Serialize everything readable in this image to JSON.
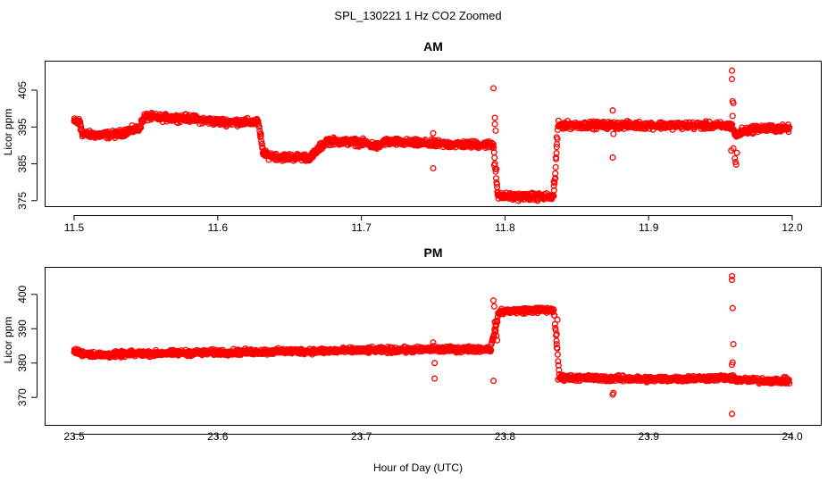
{
  "chart_data": {
    "type": "scatter",
    "title": "SPL_130221  1 Hz CO2 Zoomed",
    "xlabel": "Hour of Day (UTC)",
    "marker_color": "#ff0000",
    "panels": [
      {
        "title": "AM",
        "ylabel": "Licor ppm",
        "xlim": [
          11.5,
          12.0
        ],
        "ylim": [
          373.5,
          413
        ],
        "x_ticks": [
          "11.5",
          "11.6",
          "11.7",
          "11.8",
          "11.9",
          "12.0"
        ],
        "y_ticks": [
          "375",
          "385",
          "395",
          "405"
        ],
        "profile": [
          [
            11.5,
            396.5
          ],
          [
            11.504,
            396.5
          ],
          [
            11.506,
            393.0
          ],
          [
            11.52,
            392.8
          ],
          [
            11.53,
            393.0
          ],
          [
            11.538,
            394.0
          ],
          [
            11.545,
            394.5
          ],
          [
            11.549,
            397.8
          ],
          [
            11.56,
            397.5
          ],
          [
            11.58,
            397.4
          ],
          [
            11.59,
            396.8
          ],
          [
            11.6,
            396.4
          ],
          [
            11.628,
            396.3
          ],
          [
            11.632,
            387.5
          ],
          [
            11.645,
            386.8
          ],
          [
            11.665,
            386.8
          ],
          [
            11.67,
            389.0
          ],
          [
            11.676,
            391.2
          ],
          [
            11.7,
            390.8
          ],
          [
            11.712,
            389.7
          ],
          [
            11.716,
            391.0
          ],
          [
            11.735,
            390.7
          ],
          [
            11.76,
            390.3
          ],
          [
            11.792,
            390.2
          ],
          [
            11.795,
            376.2
          ],
          [
            11.834,
            376.0
          ],
          [
            11.837,
            395.5
          ],
          [
            11.85,
            395.5
          ],
          [
            11.94,
            395.4
          ],
          [
            11.958,
            395.3
          ],
          [
            11.961,
            392.5
          ],
          [
            11.965,
            393.8
          ],
          [
            11.975,
            394.6
          ],
          [
            11.998,
            394.6
          ]
        ],
        "noise_ppm": 0.7,
        "outliers": [
          [
            11.5005,
            396.8
          ],
          [
            11.5028,
            395.8
          ],
          [
            11.5045,
            394.2
          ],
          [
            11.63,
            393.2
          ],
          [
            11.631,
            389.3
          ],
          [
            11.632,
            388.5
          ],
          [
            11.75,
            393.3
          ],
          [
            11.75,
            383.8
          ],
          [
            11.7505,
            390.5
          ],
          [
            11.792,
            405.5
          ],
          [
            11.793,
            397.5
          ],
          [
            11.793,
            395.8
          ],
          [
            11.7935,
            394.0
          ],
          [
            11.7925,
            384.6
          ],
          [
            11.794,
            383.6
          ],
          [
            11.7945,
            378.7
          ],
          [
            11.795,
            377.2
          ],
          [
            11.834,
            380.2
          ],
          [
            11.834,
            379.0
          ],
          [
            11.835,
            381.1
          ],
          [
            11.8355,
            386.7
          ],
          [
            11.836,
            392.2
          ],
          [
            11.836,
            389.6
          ],
          [
            11.875,
            399.5
          ],
          [
            11.875,
            386.7
          ],
          [
            11.8755,
            393.1
          ],
          [
            11.958,
            410.3
          ],
          [
            11.958,
            408.0
          ],
          [
            11.9585,
            402.0
          ],
          [
            11.959,
            401.5
          ],
          [
            11.9585,
            398.0
          ],
          [
            11.9575,
            388.6
          ],
          [
            11.959,
            389.2
          ],
          [
            11.96,
            386.5
          ],
          [
            11.9605,
            385.5
          ],
          [
            11.961,
            384.8
          ],
          [
            11.9615,
            388.0
          ]
        ]
      },
      {
        "title": "PM",
        "ylabel": "Licor ppm",
        "xlim": [
          23.5,
          24.0
        ],
        "ylim": [
          362,
          408
        ],
        "x_ticks": [
          "23.5",
          "23.6",
          "23.7",
          "23.8",
          "23.9",
          "24.0"
        ],
        "y_ticks": [
          "370",
          "380",
          "390",
          "400"
        ],
        "profile": [
          [
            23.5,
            383.5
          ],
          [
            23.506,
            382.8
          ],
          [
            23.52,
            382.3
          ],
          [
            23.54,
            382.7
          ],
          [
            23.6,
            383.1
          ],
          [
            23.7,
            383.7
          ],
          [
            23.79,
            384.1
          ],
          [
            23.796,
            395.0
          ],
          [
            23.82,
            395.4
          ],
          [
            23.834,
            395.4
          ],
          [
            23.838,
            375.8
          ],
          [
            23.9,
            375.3
          ],
          [
            23.955,
            375.7
          ],
          [
            23.965,
            375.0
          ],
          [
            23.998,
            374.8
          ]
        ],
        "noise_ppm": 0.6,
        "outliers": [
          [
            23.75,
            386.0
          ],
          [
            23.7505,
            385.0
          ],
          [
            23.751,
            380.0
          ],
          [
            23.751,
            375.5
          ],
          [
            23.792,
            374.8
          ],
          [
            23.792,
            398.2
          ],
          [
            23.7925,
            396.5
          ],
          [
            23.793,
            392.0
          ],
          [
            23.7935,
            391.2
          ],
          [
            23.7935,
            389.5
          ],
          [
            23.794,
            388.0
          ],
          [
            23.7945,
            386.6
          ],
          [
            23.836,
            388.4
          ],
          [
            23.836,
            385.5
          ],
          [
            23.8365,
            392.6
          ],
          [
            23.837,
            375.2
          ],
          [
            23.875,
            370.8
          ],
          [
            23.8755,
            371.3
          ],
          [
            23.958,
            405.3
          ],
          [
            23.958,
            404.2
          ],
          [
            23.9585,
            396.0
          ],
          [
            23.959,
            385.5
          ],
          [
            23.9585,
            380.2
          ],
          [
            23.958,
            379.5
          ],
          [
            23.958,
            365.2
          ]
        ]
      }
    ]
  }
}
